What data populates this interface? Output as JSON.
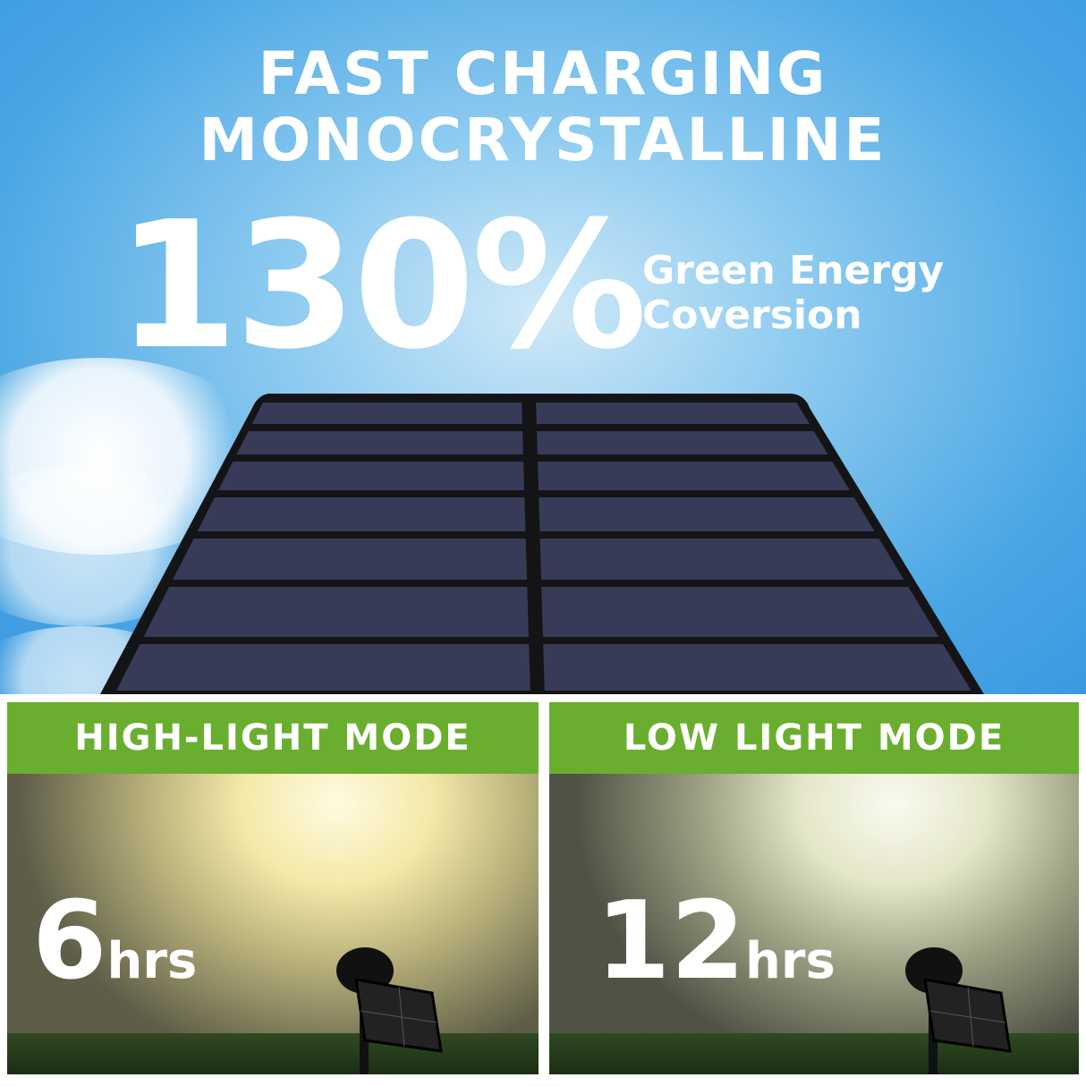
{
  "headline": {
    "line1": "FAST CHARGING",
    "line2": "MONOCRYSTALLINE"
  },
  "stat": {
    "value": "130%",
    "label_line1": "Green Energy",
    "label_line2": "Coversion"
  },
  "modes": [
    {
      "title": "HIGH-LIGHT MODE",
      "value": "6",
      "unit": "hrs"
    },
    {
      "title": "LOW LIGHT MODE",
      "value": "12",
      "unit": "hrs"
    }
  ],
  "colors": {
    "accent_green": "#6aae2f",
    "sky": "#4aa6e4",
    "panel_cell": "#3a3d5c"
  }
}
